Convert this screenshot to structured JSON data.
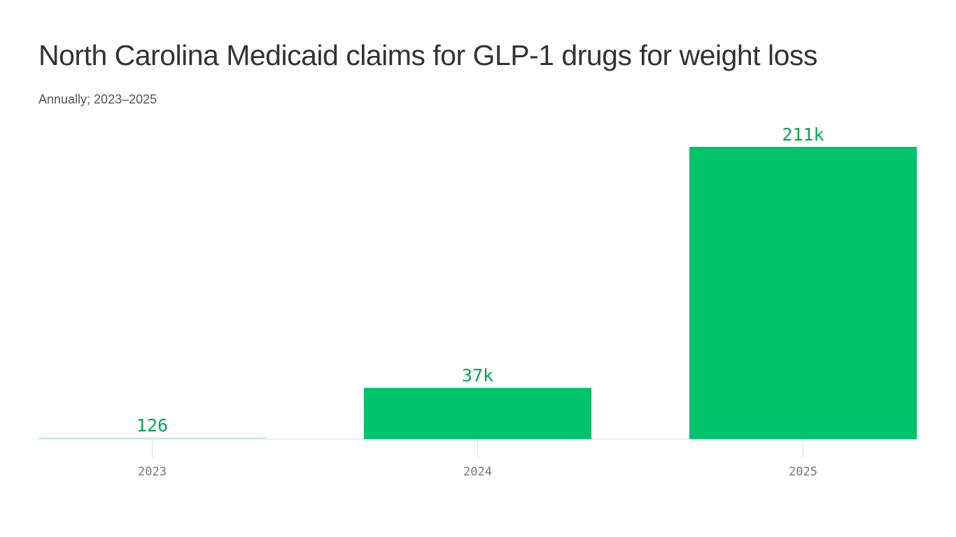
{
  "chart_data": {
    "type": "bar",
    "title": "North Carolina Medicaid claims for GLP-1 drugs for weight loss",
    "subtitle": "Annually; 2023–2025",
    "categories": [
      "2023",
      "2024",
      "2025"
    ],
    "values": [
      126,
      37000,
      211000
    ],
    "data_labels": [
      "126",
      "37k",
      "211k"
    ],
    "xlabel": "",
    "ylabel": "",
    "ylim": [
      0,
      211000
    ],
    "grid": false,
    "colors": {
      "bar": "#00c36b",
      "label": "#00a650",
      "small_bar": "#c9e6d8",
      "axis": "#dddddd"
    }
  }
}
